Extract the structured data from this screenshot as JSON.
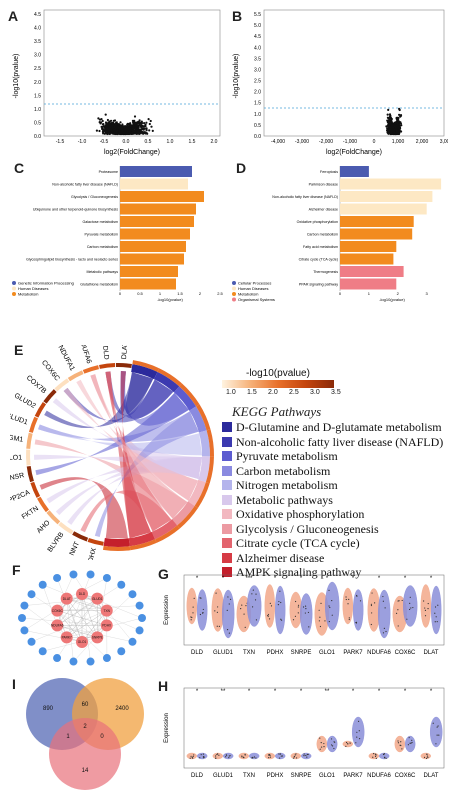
{
  "panels": {
    "A": {
      "label": "A",
      "xlabel": "log2(FoldChange)",
      "ylabel": "-log10(pvalue)",
      "xticks": [
        "-1.5",
        "-1.0",
        "-0.5",
        "0.0",
        "0.5",
        "1.0",
        "1.5",
        "2.0"
      ],
      "yticks": [
        "0.0",
        "0.5",
        "1.0",
        "1.5",
        "2.0",
        "2.5",
        "3.0",
        "3.5",
        "4.0",
        "4.5"
      ]
    },
    "B": {
      "label": "B",
      "xlabel": "log2(FoldChange)",
      "ylabel": "-log10(pvalue)",
      "xticks": [
        "-4,000",
        "-3,000",
        "-2,000",
        "-1,000",
        "0",
        "1,000",
        "2,000",
        "3,000"
      ],
      "yticks": [
        "0.0",
        "0.5",
        "1.0",
        "1.5",
        "2.0",
        "2.5",
        "3.0",
        "3.5",
        "4.0",
        "4.5",
        "5.0",
        "5.5"
      ]
    },
    "C": {
      "label": "C",
      "xlabel": "-log10(pvalue)",
      "xticks": [
        "0",
        "0.5",
        "1",
        "1.5",
        "2",
        "2.5"
      ],
      "bars": [
        {
          "name": "Proteasome",
          "value": 1.8,
          "cat": "gip"
        },
        {
          "name": "Non-alcoholic fatty liver disease (NAFLD)",
          "value": 1.7,
          "cat": "hd"
        },
        {
          "name": "Glycolysis / Gluconeogenesis",
          "value": 2.1,
          "cat": "met"
        },
        {
          "name": "Ubiquinone and other terpenoid-quinone biosynthesis",
          "value": 1.9,
          "cat": "met"
        },
        {
          "name": "Galactose metabolism",
          "value": 1.85,
          "cat": "met"
        },
        {
          "name": "Pyruvate metabolism",
          "value": 1.75,
          "cat": "met"
        },
        {
          "name": "Carbon metabolism",
          "value": 1.65,
          "cat": "met"
        },
        {
          "name": "Glycosphingolipid biosynthesis - lacto and neolacto series",
          "value": 1.6,
          "cat": "met"
        },
        {
          "name": "Metabolic pathways",
          "value": 1.45,
          "cat": "met"
        },
        {
          "name": "Glutathione metabolism",
          "value": 1.4,
          "cat": "met"
        }
      ],
      "legend": [
        {
          "name": "Genetic Information Processing",
          "color": "#4b5bb0"
        },
        {
          "name": "Human Diseases",
          "color": "#fde8c4"
        },
        {
          "name": "Metabolism",
          "color": "#f28b1e"
        }
      ]
    },
    "D": {
      "label": "D",
      "xlabel": "-log10(pvalue)",
      "xticks": [
        "0",
        "1",
        "2",
        "3"
      ],
      "bars": [
        {
          "name": "Ferroptosis",
          "value": 1.0,
          "cat": "cp"
        },
        {
          "name": "Parkinson disease",
          "value": 3.5,
          "cat": "hd"
        },
        {
          "name": "Non-alcoholic fatty liver disease (NAFLD)",
          "value": 3.2,
          "cat": "hd"
        },
        {
          "name": "Alzheimer disease",
          "value": 3.0,
          "cat": "hd"
        },
        {
          "name": "Oxidative phosphorylation",
          "value": 2.55,
          "cat": "met"
        },
        {
          "name": "Carbon metabolism",
          "value": 2.5,
          "cat": "met"
        },
        {
          "name": "Fatty acid metabolism",
          "value": 1.95,
          "cat": "met"
        },
        {
          "name": "Citrate cycle (TCA cycle)",
          "value": 1.85,
          "cat": "met"
        },
        {
          "name": "Thermogenesis",
          "value": 2.2,
          "cat": "os"
        },
        {
          "name": "PPAR signaling pathway",
          "value": 1.95,
          "cat": "os"
        }
      ],
      "legend": [
        {
          "name": "Cellular Processes",
          "color": "#4b5bb0"
        },
        {
          "name": "Human Diseases",
          "color": "#fde8c4"
        },
        {
          "name": "Metabolism",
          "color": "#f28b1e"
        },
        {
          "name": "Organismal Systems",
          "color": "#ef7d86"
        }
      ]
    },
    "E": {
      "label": "E",
      "genes": [
        "DLAT",
        "DLD",
        "NDUFA6",
        "NDUFA1",
        "COX6C",
        "COX7B",
        "GLUD2",
        "GLUD1",
        "PGM1",
        "GLO1",
        "INSR",
        "PPP2CA",
        "FKTN",
        "AHO",
        "BLVRB",
        "NNT",
        "PDHX"
      ],
      "colorbar_title": "-log10(pvalue)",
      "colorbar_ticks": [
        "1.0",
        "1.5",
        "2.0",
        "2.5",
        "3.0",
        "3.5"
      ],
      "legend_title": "KEGG Pathways",
      "pathways": [
        {
          "name": "D-Glutamine and D-glutamate metabolism",
          "color": "#2b2a9c"
        },
        {
          "name": "Non-alcoholic fatty liver disease (NAFLD)",
          "color": "#3c3ab0"
        },
        {
          "name": "Pyruvate metabolism",
          "color": "#5c5cd0"
        },
        {
          "name": "Carbon metabolism",
          "color": "#8a8ae0"
        },
        {
          "name": "Nitrogen metabolism",
          "color": "#b4b4ec"
        },
        {
          "name": "Metabolic pathways",
          "color": "#d8c8ec"
        },
        {
          "name": "Oxidative phosphorylation",
          "color": "#f2b8c0"
        },
        {
          "name": "Glycolysis / Gluconeogenesis",
          "color": "#ec9aa2"
        },
        {
          "name": "Citrate cycle (TCA cycle)",
          "color": "#e3646e"
        },
        {
          "name": "Alzheimer disease",
          "color": "#d63b45"
        },
        {
          "name": "AMPK signaling pathway",
          "color": "#c41f2c"
        }
      ]
    },
    "F": {
      "label": "F",
      "hubs": [
        "DLD",
        "GLUD1",
        "TXN",
        "PDHX",
        "SNRPE",
        "GLO1",
        "PARK7",
        "NDUFA6",
        "COX6C",
        "DLAT"
      ]
    },
    "G": {
      "label": "G",
      "ylabel": "Expression",
      "genes": [
        "DLD",
        "GLUD1",
        "TXN",
        "PDHX",
        "SNRPE",
        "GLO1",
        "PARK7",
        "NDUFA6",
        "COX6C",
        "DLAT"
      ],
      "stars": [
        "*",
        "*",
        "***",
        "*",
        "*",
        "*",
        "*",
        "*",
        "*",
        "*"
      ]
    },
    "H": {
      "label": "H",
      "ylabel": "Expression",
      "genes": [
        "DLD",
        "GLUD1",
        "TXN",
        "PDHX",
        "SNRPE",
        "GLO1",
        "PARK7",
        "NDUFA6",
        "COX6C",
        "DLAT"
      ],
      "stars": [
        "*",
        "**",
        "*",
        "*",
        "*",
        "**",
        "*",
        "*",
        "*",
        "*"
      ]
    },
    "I": {
      "label": "I",
      "values": {
        "a_only": "890",
        "b_only": "2400",
        "ab": "60",
        "c_only": "14",
        "ac": "1",
        "bc": "0",
        "abc": "2"
      }
    }
  }
}
